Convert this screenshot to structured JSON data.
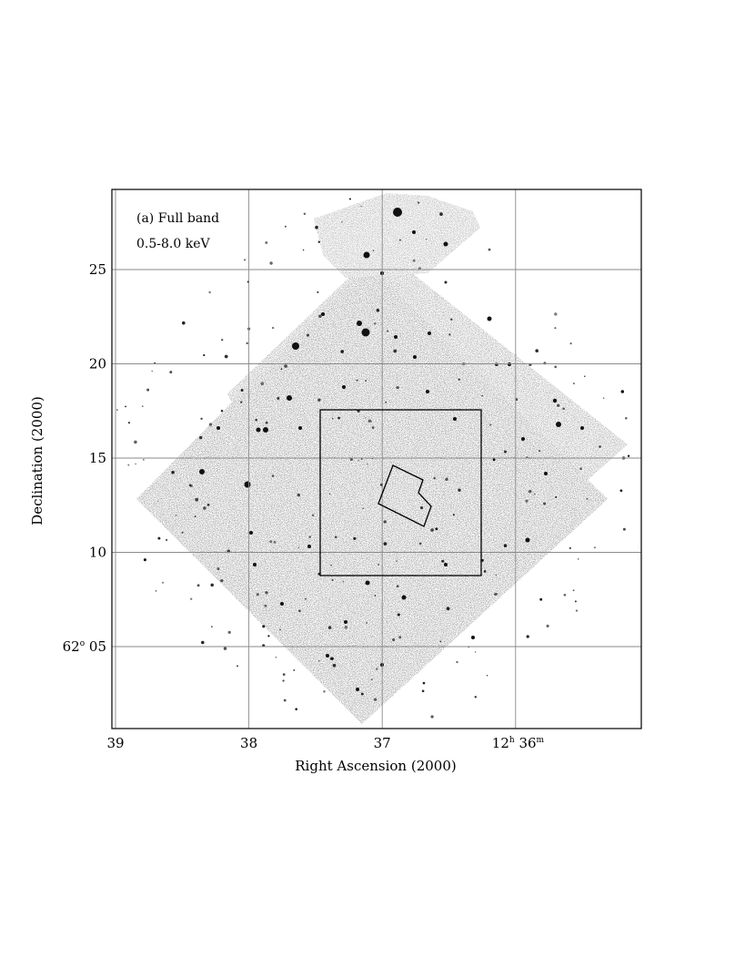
{
  "figure": {
    "annotation": {
      "line1": "(a) Full band",
      "line2": "0.5-8.0 keV"
    },
    "colors": {
      "background": "#ffffff",
      "grid": "#8a8a8a",
      "sources": "#111111"
    }
  },
  "chart_data": {
    "type": "image",
    "xlabel": "Right Ascension (2000)",
    "ylabel": "Declination (2000)",
    "x_ticks": [
      {
        "value": 39,
        "label": "39"
      },
      {
        "value": 38,
        "label": "38"
      },
      {
        "value": 37,
        "label": "37"
      },
      {
        "value": 36,
        "label": "12h 36m",
        "main": "12",
        "sup1": "h",
        "mid": " 36",
        "sup2": "m"
      }
    ],
    "y_ticks": [
      {
        "value": 25,
        "label": "25"
      },
      {
        "value": 20,
        "label": "20"
      },
      {
        "value": 15,
        "label": "15"
      },
      {
        "value": 10,
        "label": "10"
      },
      {
        "value": 5,
        "label": "62° 05",
        "main": "62",
        "sup1": "o",
        "mid": " 05"
      }
    ],
    "x_unit": "minutes of RA (12h)",
    "y_unit": "arcmin of Dec (+62°)",
    "grid": true,
    "x_axis_reversed": true,
    "xlim": [
      39.05,
      35.05
    ],
    "ylim": [
      0.5,
      29.2
    ]
  }
}
